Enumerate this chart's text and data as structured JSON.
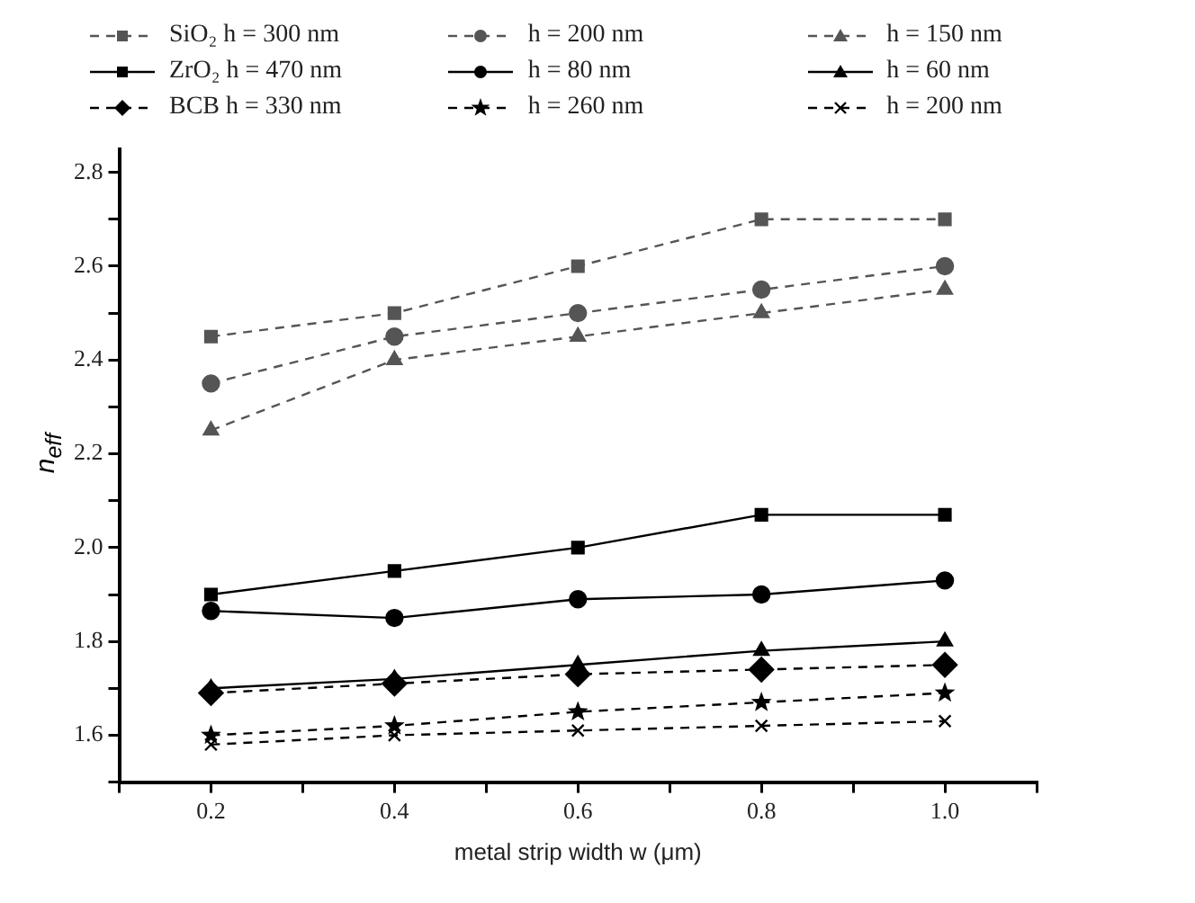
{
  "chart_data": {
    "type": "line",
    "xlabel": "metal strip width w (μm)",
    "ylabel": "n$_{eff}$",
    "x": [
      0.2,
      0.4,
      0.6,
      0.8,
      1.0
    ],
    "xlim": [
      0.1,
      1.1
    ],
    "xticks": [
      {
        "value": 0.1,
        "label": null
      },
      0.2,
      {
        "value": 0.3,
        "label": null
      },
      0.4,
      {
        "value": 0.5,
        "label": null
      },
      0.6,
      {
        "value": 0.7,
        "label": null
      },
      0.8,
      {
        "value": 0.9,
        "label": null
      },
      "1.0",
      {
        "value": 1.1,
        "label": null
      }
    ],
    "ylim": [
      1.5,
      2.85
    ],
    "yticks": [
      {
        "value": 1.5,
        "label": null
      },
      1.6,
      {
        "value": 1.7,
        "label": null
      },
      1.8,
      {
        "value": 1.9,
        "label": null
      },
      "2.0",
      {
        "value": 2.1,
        "label": null
      },
      2.2,
      {
        "value": 2.3,
        "label": null
      },
      2.4,
      {
        "value": 2.5,
        "label": null
      },
      2.6,
      {
        "value": 2.7,
        "label": null
      },
      2.8
    ],
    "grid": false,
    "legend": "top",
    "series": [
      {
        "name": "SiO₂  h = 300 nm",
        "color": "#555555",
        "marker": "square",
        "line_style": "dashed",
        "values": [
          2.45,
          2.5,
          2.6,
          2.7,
          2.7
        ]
      },
      {
        "name": "h = 200 nm",
        "color": "#555555",
        "marker": "circle",
        "line_style": "dashed",
        "values": [
          2.35,
          2.45,
          2.5,
          2.55,
          2.6
        ]
      },
      {
        "name": "h = 150 nm",
        "color": "#555555",
        "marker": "triangle",
        "line_style": "dashed",
        "values": [
          2.25,
          2.4,
          2.45,
          2.5,
          2.55
        ]
      },
      {
        "name": "ZrO₂  h = 470 nm",
        "color": "#000000",
        "marker": "square",
        "line_style": "solid",
        "values": [
          1.9,
          1.95,
          2.0,
          2.07,
          2.07
        ]
      },
      {
        "name": "h = 80 nm",
        "color": "#000000",
        "marker": "circle",
        "line_style": "solid",
        "values": [
          1.865,
          1.85,
          1.89,
          1.9,
          1.93
        ]
      },
      {
        "name": "h = 60 nm",
        "color": "#000000",
        "marker": "triangle",
        "line_style": "solid",
        "values": [
          1.7,
          1.72,
          1.75,
          1.78,
          1.8
        ]
      },
      {
        "name": "BCB  h = 330 nm",
        "color": "#000000",
        "marker": "diamond",
        "line_style": "dashed",
        "values": [
          1.69,
          1.71,
          1.73,
          1.74,
          1.75
        ]
      },
      {
        "name": "h = 260 nm",
        "color": "#000000",
        "marker": "star",
        "line_style": "dashed",
        "values": [
          1.6,
          1.62,
          1.65,
          1.67,
          1.69
        ]
      },
      {
        "name": "h = 200 nm",
        "color": "#000000",
        "marker": "cross",
        "line_style": "dashed",
        "values": [
          1.58,
          1.6,
          1.61,
          1.62,
          1.63
        ]
      }
    ]
  }
}
